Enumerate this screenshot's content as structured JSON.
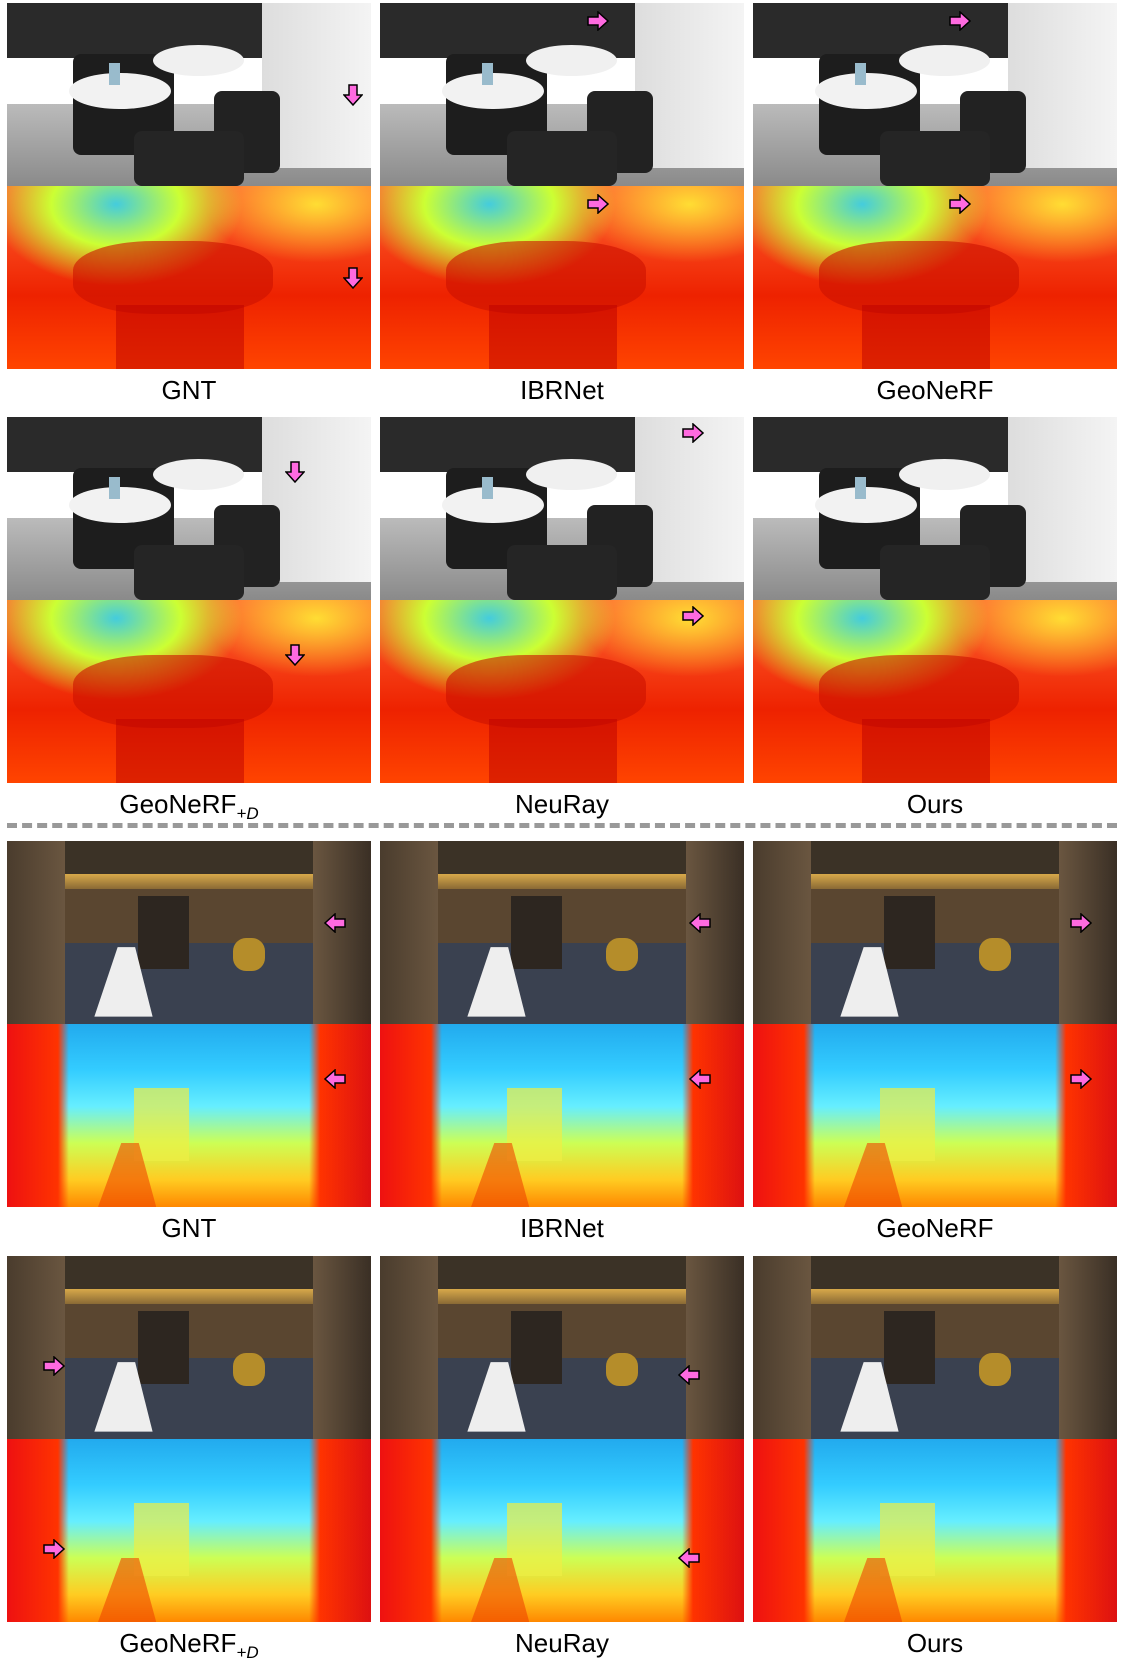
{
  "groups": [
    {
      "labels": [
        {
          "text": "GNT"
        },
        {
          "text": "IBRNet"
        },
        {
          "text": "GeoNeRF"
        }
      ]
    },
    {
      "labels": [
        {
          "text": "GeoNeRF",
          "subscript": "+D"
        },
        {
          "text": "NeuRay"
        },
        {
          "text": "Ours"
        }
      ]
    },
    {
      "labels": [
        {
          "text": "GNT"
        },
        {
          "text": "IBRNet"
        },
        {
          "text": "GeoNeRF"
        }
      ]
    },
    {
      "labels": [
        {
          "text": "GeoNeRF",
          "subscript": "+D"
        },
        {
          "text": "NeuRay"
        },
        {
          "text": "Ours"
        }
      ]
    }
  ]
}
